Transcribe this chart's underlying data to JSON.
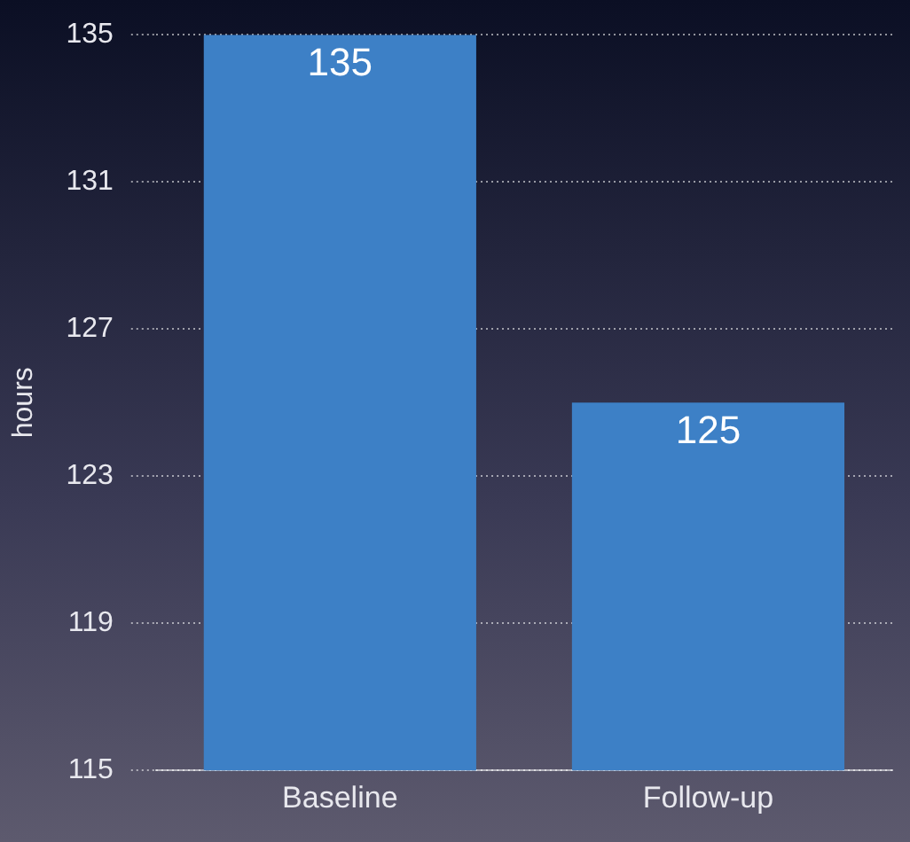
{
  "chart_data": {
    "type": "bar",
    "ylabel": "hours",
    "categories": [
      "Baseline",
      "Follow-up"
    ],
    "values": [
      135,
      125
    ],
    "color": "#3d80c6",
    "ylim": [
      115,
      135
    ],
    "yticks": [
      115,
      119,
      123,
      127,
      131,
      135
    ],
    "grid": "y",
    "data_labels": true,
    "legend": false
  }
}
